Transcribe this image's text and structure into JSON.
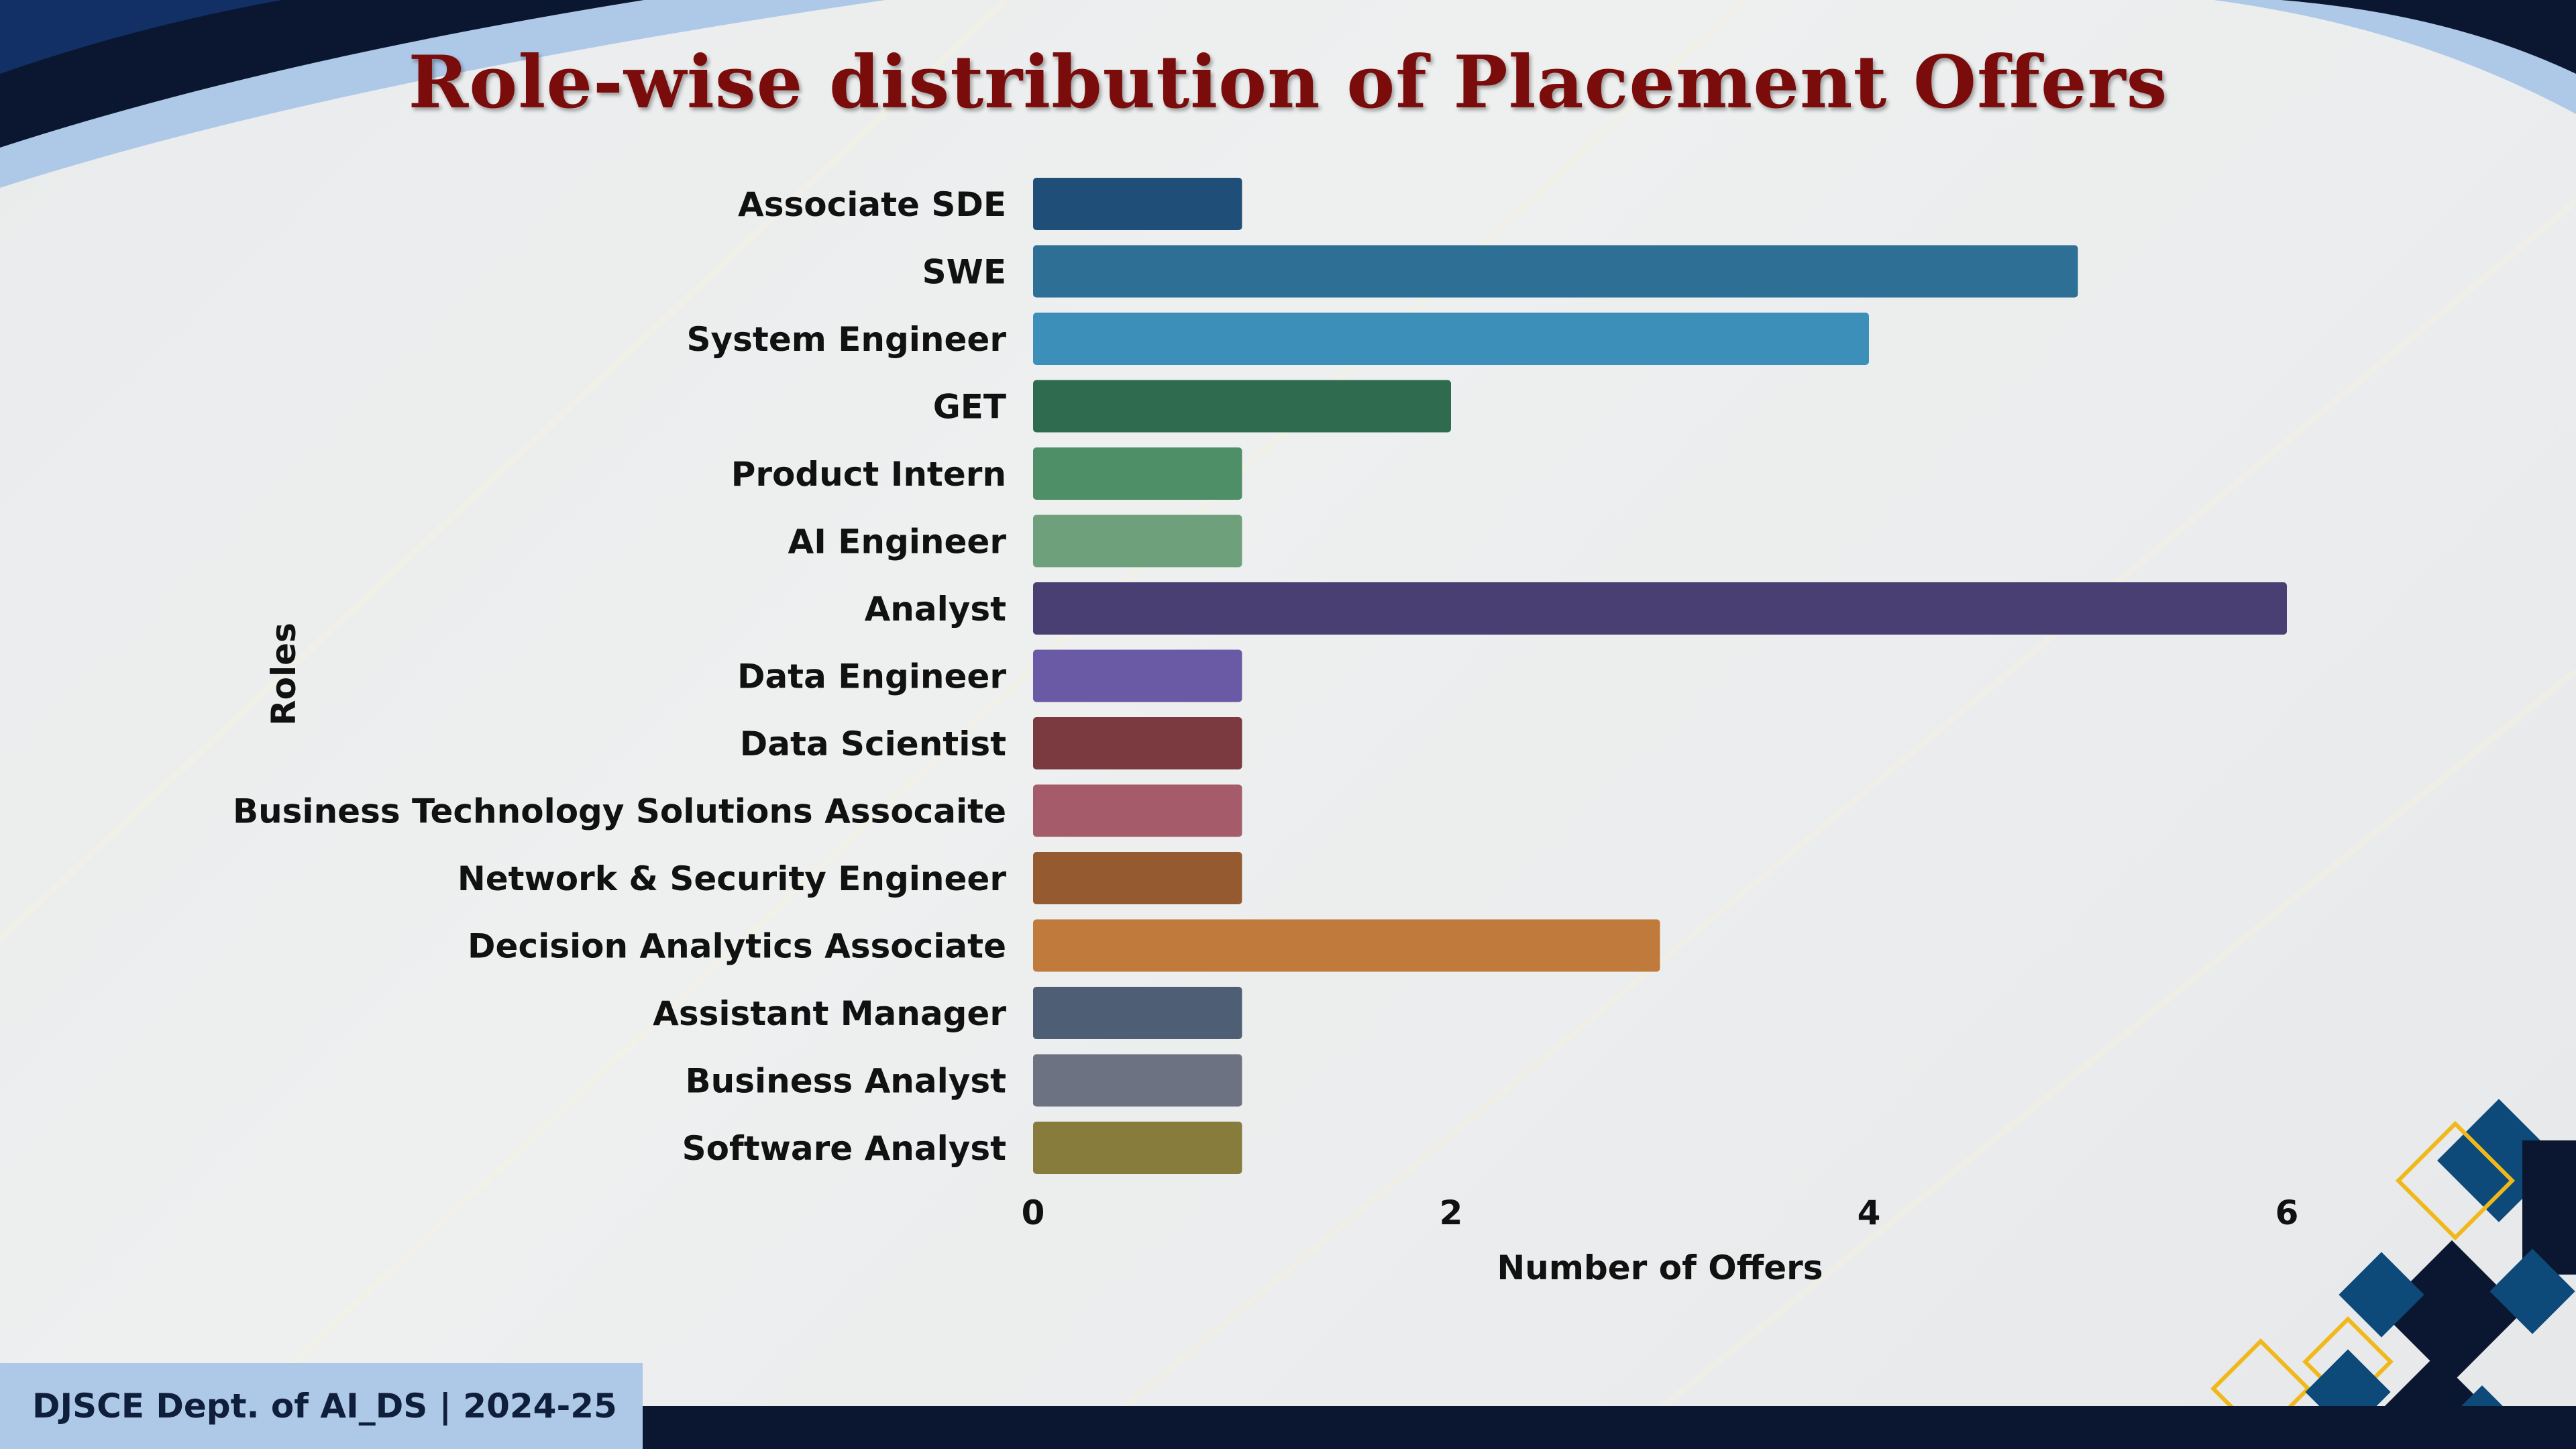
{
  "title": "Role-wise distribution of Placement Offers",
  "footer": "DJSCE Dept. of AI_DS | 2024-25",
  "chart_data": {
    "type": "bar",
    "orientation": "horizontal",
    "title": "Role-wise distribution of Placement Offers",
    "xlabel": "Number of Offers",
    "ylabel": "Roles",
    "xlim": [
      0,
      6.5
    ],
    "xticks": [
      0,
      2,
      4,
      6
    ],
    "grid": false,
    "categories": [
      "Associate SDE",
      "SWE",
      "System Engineer",
      "GET",
      "Product Intern",
      "AI Engineer",
      "Analyst",
      "Data Engineer",
      "Data Scientist",
      "Business Technology Solutions Assocaite",
      "Network & Security Engineer",
      "Decision Analytics Associate",
      "Assistant Manager",
      "Business Analyst",
      "Software Analyst"
    ],
    "values": [
      1,
      5,
      4,
      2,
      1,
      1,
      6,
      1,
      1,
      1,
      1,
      3,
      1,
      1,
      1
    ],
    "colors": [
      "#1f4e79",
      "#2e6f96",
      "#3b8fb8",
      "#2e6b4f",
      "#4e8f68",
      "#6ea07c",
      "#4a3f72",
      "#6a5aa5",
      "#7a3a40",
      "#a65b6a",
      "#955a30",
      "#c07a3b",
      "#4e5e75",
      "#6d7282",
      "#877c3c"
    ]
  }
}
